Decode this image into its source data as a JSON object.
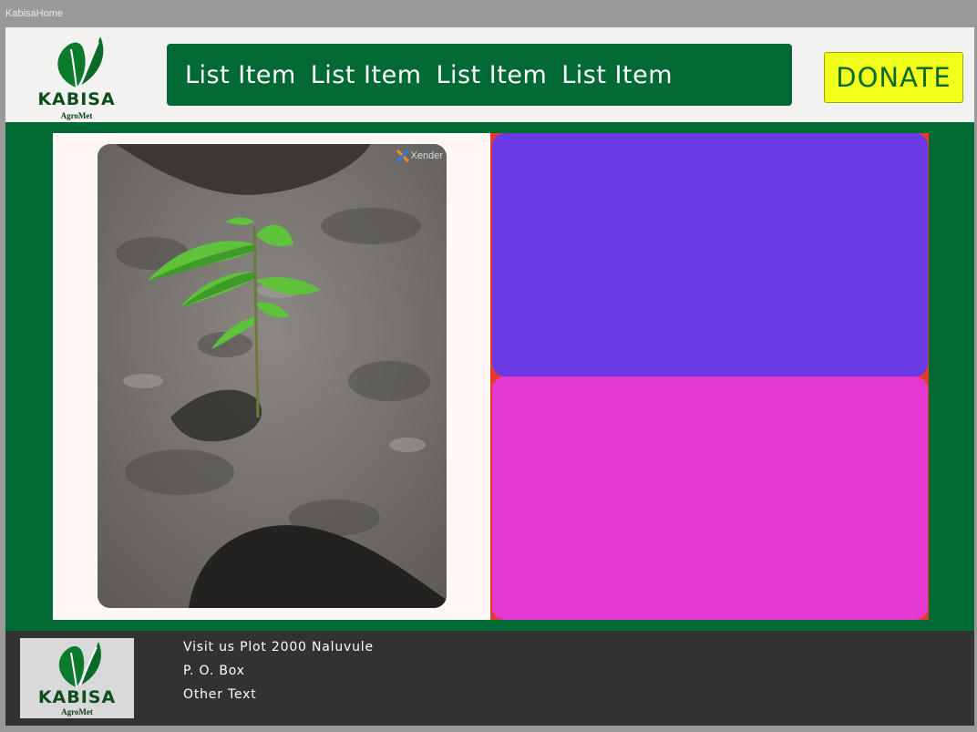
{
  "window": {
    "title": "KabisaHome"
  },
  "brand": {
    "name": "KABISA",
    "tagline": "AgroMet"
  },
  "nav": {
    "items": [
      {
        "label": "List Item"
      },
      {
        "label": "List Item"
      },
      {
        "label": "List Item"
      },
      {
        "label": "List Item"
      }
    ]
  },
  "donate": {
    "label": "DONATE"
  },
  "photo": {
    "watermark": "Xender"
  },
  "footer": {
    "lines": [
      "Visit us Plot 2000 Naluvule",
      "P. O. Box",
      "Other Text"
    ]
  },
  "colors": {
    "brand_green": "#006934",
    "donate_yellow": "#f1ff1a",
    "panel_purple": "#6a3ae4",
    "panel_magenta": "#e53ad2",
    "panel_red": "#e53a2a",
    "footer_dark": "#323230"
  }
}
